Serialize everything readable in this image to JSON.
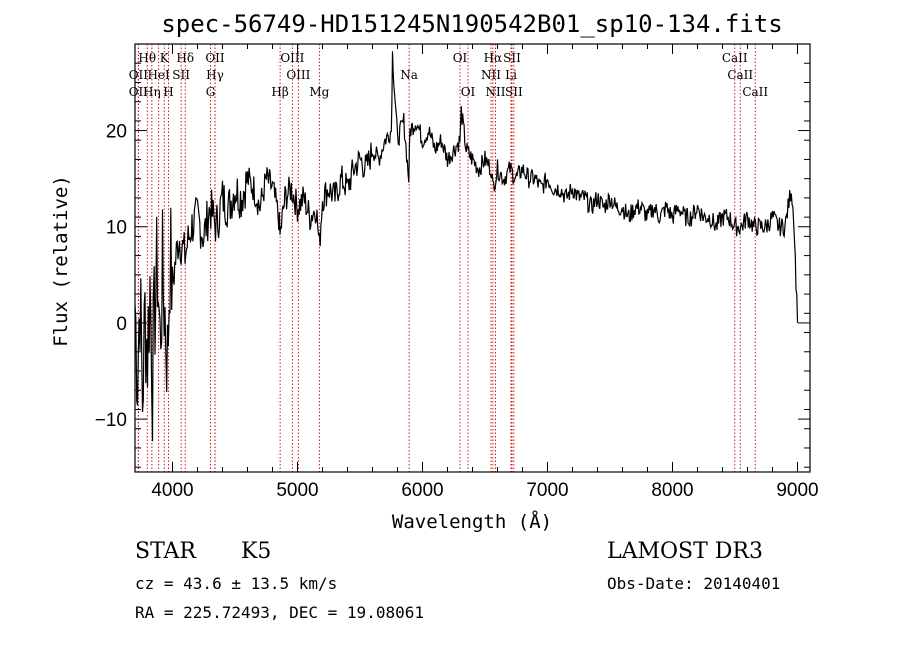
{
  "chart_data": {
    "type": "line",
    "title": "spec-56749-HD151245N190542B01_sp10-134.fits",
    "xlabel": "Wavelength (Å)",
    "ylabel": "Flux (relative)",
    "xlim": [
      3700,
      9100
    ],
    "ylim": [
      -15.5,
      29
    ],
    "x_ticks": [
      4000,
      5000,
      6000,
      7000,
      8000,
      9000
    ],
    "y_ticks": [
      -10,
      0,
      10,
      20
    ],
    "series": [
      {
        "name": "flux",
        "x": [
          3700,
          3720,
          3740,
          3760,
          3780,
          3800,
          3820,
          3840,
          3860,
          3880,
          3900,
          3920,
          3940,
          3960,
          3980,
          4000,
          4050,
          4100,
          4150,
          4200,
          4250,
          4300,
          4350,
          4400,
          4450,
          4500,
          4550,
          4600,
          4650,
          4700,
          4750,
          4800,
          4850,
          4860,
          4900,
          4950,
          5000,
          5050,
          5100,
          5150,
          5175,
          5200,
          5250,
          5300,
          5350,
          5400,
          5450,
          5500,
          5550,
          5600,
          5650,
          5700,
          5750,
          5760,
          5800,
          5850,
          5890,
          5900,
          5950,
          6000,
          6050,
          6100,
          6150,
          6200,
          6250,
          6300,
          6310,
          6350,
          6400,
          6450,
          6500,
          6550,
          6563,
          6600,
          6650,
          6700,
          6750,
          6800,
          6850,
          6900,
          6950,
          7000,
          7050,
          7100,
          7150,
          7200,
          7250,
          7300,
          7350,
          7400,
          7450,
          7500,
          7550,
          7600,
          7650,
          7700,
          7750,
          7800,
          7850,
          7900,
          7950,
          8000,
          8050,
          8100,
          8150,
          8200,
          8250,
          8300,
          8350,
          8400,
          8450,
          8500,
          8550,
          8600,
          8650,
          8700,
          8750,
          8800,
          8850,
          8900,
          8950,
          8970,
          9000
        ],
        "y": [
          2,
          -5,
          3,
          -8,
          1,
          -3,
          4,
          -6,
          2,
          6,
          -2,
          5,
          1,
          -4,
          7,
          4,
          9,
          7,
          10,
          11,
          9,
          12,
          10,
          13,
          12,
          14,
          13,
          15,
          14,
          12,
          15,
          14,
          11,
          9,
          13,
          14,
          12,
          13,
          11,
          12,
          8,
          13,
          14,
          13,
          15,
          14,
          16,
          17,
          16,
          18,
          17,
          19,
          20,
          28,
          19,
          21,
          15,
          20,
          21,
          19,
          20,
          18,
          19,
          17,
          18,
          19,
          22,
          18,
          17,
          16,
          17,
          16,
          14,
          16,
          15,
          16,
          15,
          16,
          15,
          15,
          14,
          15,
          14,
          14,
          13,
          14,
          13,
          13,
          12,
          13,
          12,
          13,
          12,
          12,
          11,
          12,
          12,
          11,
          12,
          11,
          12,
          11,
          12,
          11,
          11,
          12,
          11,
          11,
          10,
          11,
          11,
          10,
          10,
          11,
          10,
          10,
          10,
          11,
          10,
          10,
          14,
          11,
          0
        ]
      }
    ],
    "line_ids": [
      {
        "label": "Hθ",
        "x": 3798,
        "row": 1
      },
      {
        "label": "K",
        "x": 3934,
        "row": 1
      },
      {
        "label": "Hδ",
        "x": 4102,
        "row": 1
      },
      {
        "label": "OII",
        "x": 4340,
        "row": 1
      },
      {
        "label": "OIII",
        "x": 4959,
        "row": 1
      },
      {
        "label": "OI",
        "x": 6300,
        "row": 1
      },
      {
        "label": "Hα",
        "x": 6563,
        "row": 1
      },
      {
        "label": "SII",
        "x": 6716,
        "row": 1
      },
      {
        "label": "CaII",
        "x": 8498,
        "row": 1
      },
      {
        "label": "OII",
        "x": 3727,
        "row": 2
      },
      {
        "label": "HeI",
        "x": 3889,
        "row": 2
      },
      {
        "label": "SII",
        "x": 4069,
        "row": 2
      },
      {
        "label": "Hγ",
        "x": 4340,
        "row": 2
      },
      {
        "label": "OIII",
        "x": 5007,
        "row": 2
      },
      {
        "label": "Na",
        "x": 5893,
        "row": 2
      },
      {
        "label": "NII",
        "x": 6548,
        "row": 2
      },
      {
        "label": "Li",
        "x": 6708,
        "row": 2
      },
      {
        "label": "CaII",
        "x": 8542,
        "row": 2
      },
      {
        "label": "OII",
        "x": 3727,
        "row": 3
      },
      {
        "label": "Hη",
        "x": 3835,
        "row": 3
      },
      {
        "label": "H",
        "x": 3968,
        "row": 3
      },
      {
        "label": "G",
        "x": 4304,
        "row": 3
      },
      {
        "label": "Hβ",
        "x": 4861,
        "row": 3
      },
      {
        "label": "Mg",
        "x": 5175,
        "row": 3
      },
      {
        "label": "OI",
        "x": 6364,
        "row": 3
      },
      {
        "label": "NII",
        "x": 6584,
        "row": 3
      },
      {
        "label": "SII",
        "x": 6731,
        "row": 3
      },
      {
        "label": "CaII",
        "x": 8662,
        "row": 3
      }
    ],
    "line_color": "#cc0000",
    "series_color": "#000000"
  },
  "info": {
    "class_label": "STAR",
    "subclass": "K5",
    "survey": "LAMOST DR3",
    "cz": "cz = 43.6 ± 13.5 km/s",
    "obs_date": "Obs-Date: 20140401",
    "radec": "RA = 225.72493, DEC =  19.08061"
  }
}
